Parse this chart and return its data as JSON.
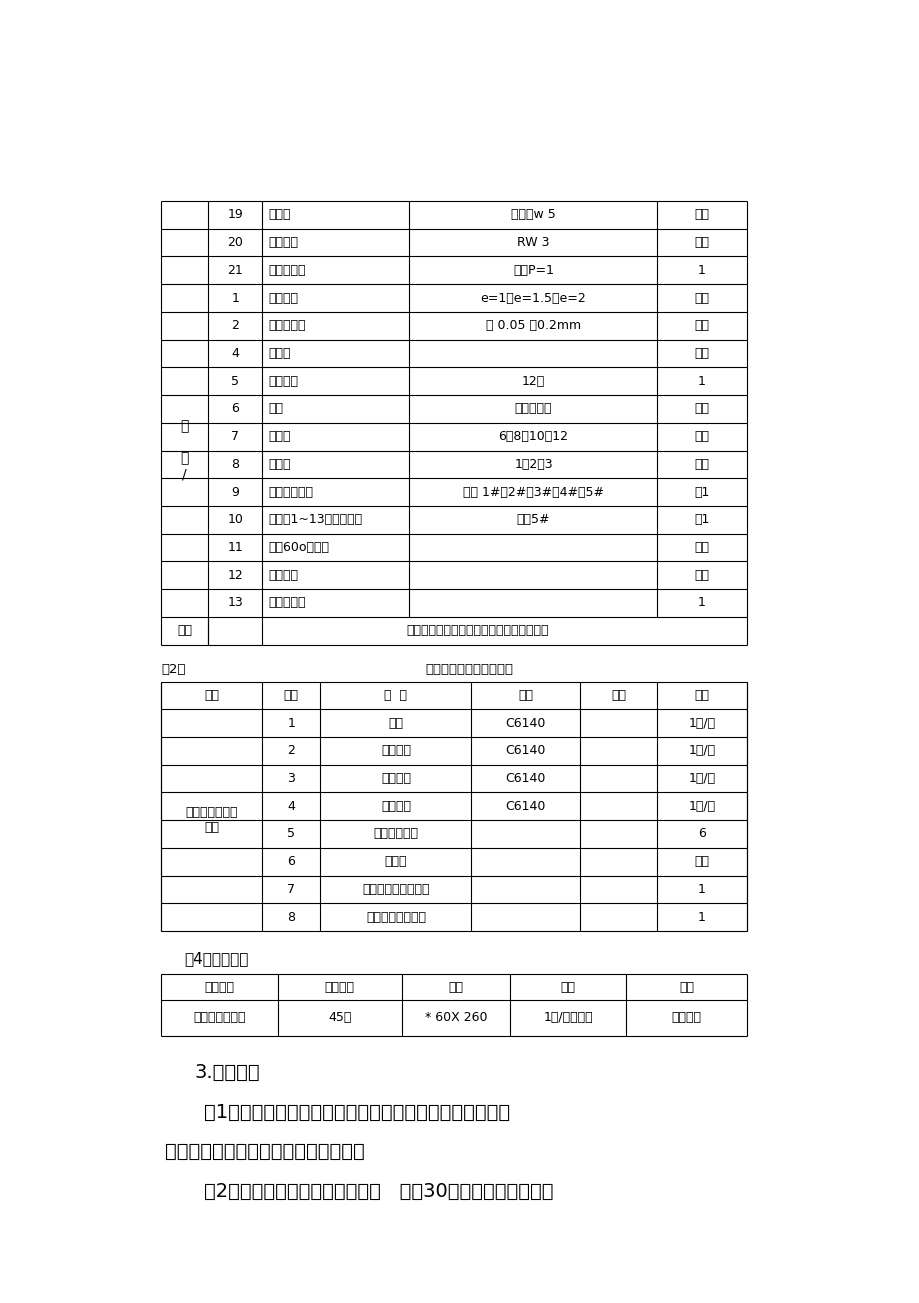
{
  "bg_color": "#ffffff",
  "table1_top_rows": [
    {
      "num": "19",
      "name": "切断刀",
      "spec": "刀头宽w 5",
      "qty": "自定"
    },
    {
      "num": "20",
      "name": "圆弧车刀",
      "spec": "RW 3",
      "qty": "自定"
    },
    {
      "num": "21",
      "name": "网纹滚花刀",
      "spec": "网纹P=1",
      "qty": "1"
    }
  ],
  "table1_tool_rows": [
    {
      "num": "1",
      "name": "偏心垫块",
      "spec": "e=1、e=1.5、e=2",
      "qty": "自定"
    },
    {
      "num": "2",
      "name": "铜棒、铜皮",
      "spec": "厚 0.05 ～0.2mm",
      "qty": "自定"
    },
    {
      "num": "4",
      "name": "红丹粉",
      "spec": "",
      "qty": "若干"
    },
    {
      "num": "5",
      "name": "活络板手",
      "spec": "12时",
      "qty": "1"
    },
    {
      "num": "6",
      "name": "起子",
      "spec": "一字、十字",
      "qty": "若干"
    },
    {
      "num": "7",
      "name": "内六角",
      "spec": "6、8、10、12",
      "qty": "自定"
    },
    {
      "num": "8",
      "name": "垫刀块",
      "spec": "1、2、3",
      "qty": "自定"
    },
    {
      "num": "9",
      "name": "相应配套钻套",
      "spec": "莫氏 1#、2#、3#、4#、5#",
      "qty": "各1"
    },
    {
      "num": "10",
      "name": "钻夹头1~13、活络顶尖",
      "spec": "莫氏5#",
      "qty": "各1"
    },
    {
      "num": "11",
      "name": "自制60o前顶尖",
      "spec": "",
      "qty": "自定"
    },
    {
      "num": "12",
      "name": "鸡心夹头",
      "spec": "",
      "qty": "自定"
    },
    {
      "num": "13",
      "name": "函数计算器",
      "spec": "",
      "qty": "1"
    }
  ],
  "table1_note": "不得使用偏心夹套、开缝夹套、对合夹套。",
  "table1_category_label": "工\n\n具\n/",
  "table2_title_left": "表2：",
  "table2_title_center": "车工机床配附件建议清单",
  "table2_header": [
    "类别",
    "序号",
    "名  称",
    "型号",
    "精度",
    "数量"
  ],
  "table2_category": "机床附件（场地\n备）",
  "table2_rows": [
    {
      "num": "1",
      "name": "车床",
      "model": "C6140",
      "prec": "",
      "qty": "1台/生"
    },
    {
      "num": "2",
      "name": "三爪卡盘",
      "model": "C6140",
      "prec": "",
      "qty": "1只/车"
    },
    {
      "num": "3",
      "name": "卡盘扳手",
      "model": "C6140",
      "prec": "",
      "qty": "1只/车"
    },
    {
      "num": "4",
      "name": "刀架扳手",
      "model": "C6140",
      "prec": "",
      "qty": "1副/车"
    },
    {
      "num": "5",
      "name": "砂轮机及砂轮",
      "model": "",
      "prec": "",
      "qty": "6"
    },
    {
      "num": "6",
      "name": "冷却液",
      "model": "",
      "prec": "",
      "qty": "若干"
    },
    {
      "num": "7",
      "name": "刻字编码机或记号笔",
      "model": "",
      "prec": "",
      "qty": "1"
    },
    {
      "num": "8",
      "name": "清除铁用屑的钩子",
      "model": "",
      "prec": "",
      "qty": "1"
    }
  ],
  "section4_title": "（4）材料准备",
  "table3_header": [
    "参赛组别",
    "材料名称",
    "规格",
    "数量",
    "要求"
  ],
  "table3_rows": [
    {
      "group": "学生组、教师组",
      "material": "45钢",
      "spec": "* 60X 260",
      "qty": "1段/每位考生",
      "req": "考场准备"
    }
  ],
  "section3_title": "3.选手须知",
  "para1_line1": "（1）参赛选手必须持本人身份证、学生证、教师证明并携",
  "para1_line2": "（佩）带统一签发的参赛证参加竞赛。",
  "para2": "（2）参赛选手必须按竞赛时间，   提前30分钟检录进入赛场，"
}
